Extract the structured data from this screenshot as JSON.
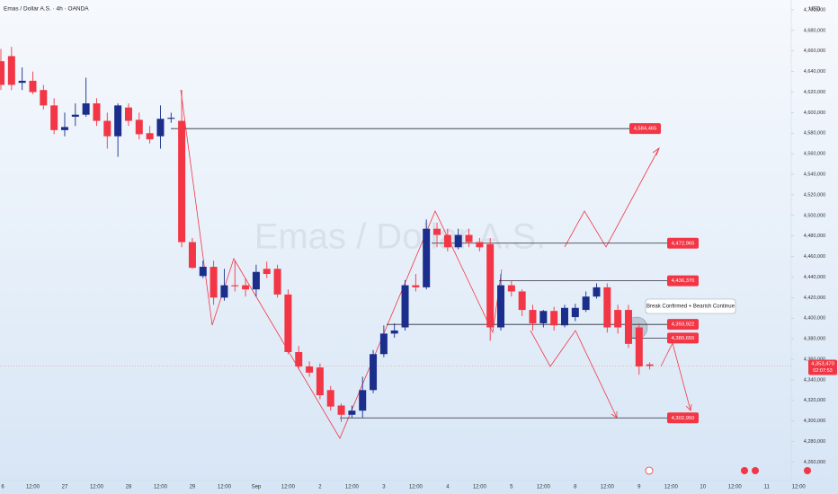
{
  "chart_data": {
    "type": "candlestick",
    "title": "Emas / Dollar A.S. · 4h · OANDA",
    "watermark": "Emas / Dollar A.S.",
    "currency": "USD",
    "annotation": "Break Confirmed + Bearish Continue",
    "up_color": "#1b2e8c",
    "down_color": "#f23645",
    "grid": false,
    "categories": [
      "6",
      null,
      null,
      "12:00",
      null,
      null,
      "27",
      null,
      null,
      "12:00",
      null,
      null,
      "28",
      null,
      null,
      "12:00",
      null,
      null,
      "29",
      null,
      null,
      "12:00",
      null,
      null,
      "Sep",
      null,
      null,
      "12:00",
      null,
      null,
      "2",
      null,
      null,
      "12:00",
      null,
      null,
      "3",
      null,
      null,
      "12:00",
      null,
      null,
      "4",
      null,
      null,
      "12:00",
      null,
      null,
      "5",
      null,
      null,
      "12:00",
      null,
      null,
      "8",
      null,
      null,
      "12:00",
      null,
      null,
      "9",
      null,
      null,
      "12:00",
      null,
      null,
      "10",
      null,
      null,
      "12:00",
      null,
      null,
      "11",
      null,
      null,
      "12:00"
    ],
    "open": [
      4650000,
      4655000,
      4629000,
      4631000,
      4622000,
      4607000,
      4583000,
      4596000,
      4598000,
      4609000,
      4592000,
      4577000,
      4605000,
      4593000,
      4580000,
      4577000,
      4594000,
      4592000,
      4474000,
      4441000,
      4450000,
      4420000,
      4432000,
      4432000,
      4428000,
      4448000,
      4448000,
      4423000,
      4367000,
      4353000,
      4352000,
      4330000,
      4315000,
      4306000,
      4310000,
      4330000,
      4365000,
      4385000,
      4391000,
      4432000,
      4430000,
      4487000,
      4481000,
      4469000,
      4481000,
      4474000,
      4472000,
      4391000,
      4432000,
      4426000,
      4408000,
      4395000,
      4407000,
      4393000,
      4401000,
      4408000,
      4421000,
      4430000,
      4408000,
      4408000,
      4391000,
      4355000,
      null,
      null,
      null,
      null,
      null,
      null,
      null,
      null,
      null,
      null,
      null,
      null,
      null,
      null
    ],
    "high": [
      4662000,
      4664000,
      4644000,
      4640000,
      4627000,
      4614000,
      4600000,
      4609000,
      4634000,
      4614000,
      4600000,
      4609000,
      4609000,
      4600000,
      4587000,
      4607000,
      4600000,
      4622000,
      4478000,
      4456000,
      4456000,
      4448000,
      4456000,
      4439000,
      4452000,
      4455000,
      4452000,
      4428000,
      4373000,
      4358000,
      4356000,
      4334000,
      4317000,
      4315000,
      4343000,
      4369000,
      4393000,
      4395000,
      4437000,
      4443000,
      4496000,
      4493000,
      4487000,
      4487000,
      4487000,
      4478000,
      4478000,
      4443000,
      4437000,
      4428000,
      4413000,
      4408000,
      4411000,
      4413000,
      4414000,
      4426000,
      4434000,
      4434000,
      4413000,
      4413000,
      4395000,
      4357000,
      null,
      null,
      null,
      null,
      null,
      null,
      null,
      null,
      null,
      null,
      null,
      null,
      null,
      null
    ],
    "low": [
      4622000,
      4622000,
      4622000,
      4618000,
      4603000,
      4579000,
      4577000,
      4587000,
      4596000,
      4587000,
      4565000,
      4557000,
      4587000,
      4574000,
      4570000,
      4565000,
      4590000,
      4469000,
      4448000,
      4439000,
      4413000,
      4417000,
      4426000,
      4421000,
      4421000,
      4439000,
      4420000,
      4365000,
      4350000,
      4343000,
      4321000,
      4310000,
      4299000,
      4303000,
      4303000,
      4327000,
      4362000,
      4381000,
      4388000,
      4426000,
      4428000,
      4469000,
      4465000,
      4467000,
      4469000,
      4465000,
      4378000,
      4388000,
      4421000,
      4402000,
      4388000,
      4391000,
      4388000,
      4391000,
      4397000,
      4406000,
      4419000,
      4386000,
      4385000,
      4371000,
      4345000,
      4350000,
      null,
      null,
      null,
      null,
      null,
      null,
      null,
      null,
      null,
      null,
      null,
      null,
      null,
      null
    ],
    "close": [
      4627000,
      4627000,
      4631000,
      4620000,
      4607000,
      4583000,
      4586000,
      4598000,
      4609000,
      4592000,
      4577000,
      4607000,
      4592000,
      4579000,
      4574000,
      4594000,
      4595000,
      4474000,
      4449000,
      4450000,
      4420000,
      4432000,
      4431000,
      4428000,
      4445000,
      4443000,
      4423000,
      4367000,
      4353000,
      4347000,
      4325000,
      4314000,
      4306000,
      4310000,
      4330000,
      4365000,
      4385000,
      4388000,
      4432000,
      4430000,
      4487000,
      4481000,
      4469000,
      4481000,
      4474000,
      4469000,
      4391000,
      4432000,
      4426000,
      4408000,
      4395000,
      4407000,
      4393000,
      4410000,
      4410000,
      4421000,
      4430000,
      4391000,
      4391000,
      4375000,
      4353000,
      4353470,
      null,
      null,
      null,
      null,
      null,
      null,
      null,
      null,
      null,
      null,
      null,
      null,
      null,
      null
    ],
    "ylim": [
      4242000,
      4709600
    ],
    "yticks": [
      {
        "value": 4260000,
        "label": "4,260,000"
      },
      {
        "value": 4280000,
        "label": "4,280,000"
      },
      {
        "value": 4300000,
        "label": "4,300,000"
      },
      {
        "value": 4320000,
        "label": "4,320,000"
      },
      {
        "value": 4340000,
        "label": "4,340,000"
      },
      {
        "value": 4360000,
        "label": "4,360,000"
      },
      {
        "value": 4380000,
        "label": "4,380,000"
      },
      {
        "value": 4400000,
        "label": "4,400,000"
      },
      {
        "value": 4420000,
        "label": "4,420,000"
      },
      {
        "value": 4440000,
        "label": "4,440,000"
      },
      {
        "value": 4460000,
        "label": "4,460,000"
      },
      {
        "value": 4480000,
        "label": "4,480,000"
      },
      {
        "value": 4500000,
        "label": "4,500,000"
      },
      {
        "value": 4520000,
        "label": "4,520,000"
      },
      {
        "value": 4540000,
        "label": "4,540,000"
      },
      {
        "value": 4560000,
        "label": "4,560,000"
      },
      {
        "value": 4580000,
        "label": "4,580,000"
      },
      {
        "value": 4600000,
        "label": "4,600,000"
      },
      {
        "value": 4620000,
        "label": "4,620,000"
      },
      {
        "value": 4640000,
        "label": "4,640,000"
      },
      {
        "value": 4660000,
        "label": "4,660,000"
      },
      {
        "value": 4680000,
        "label": "4,680,000"
      },
      {
        "value": 4700000,
        "label": "4,700,000"
      }
    ],
    "levels": [
      {
        "value": 4584465,
        "label": "4,584,465"
      },
      {
        "value": 4472965,
        "label": "4,472,965"
      },
      {
        "value": 4436370,
        "label": "4,436,370"
      },
      {
        "value": 4393922,
        "label": "4,393,922"
      },
      {
        "value": 4380655,
        "label": "4,380,655"
      },
      {
        "value": 4302950,
        "label": "4,302,950"
      }
    ],
    "last_price": {
      "value": 4353470,
      "label": "4,353,470",
      "countdown": "02:07:53"
    }
  }
}
